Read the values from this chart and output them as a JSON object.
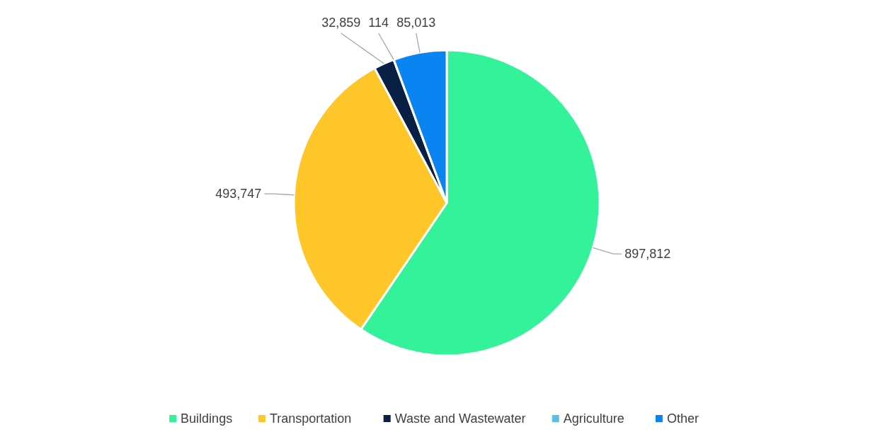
{
  "chart_data": {
    "type": "pie",
    "categories": [
      "Buildings",
      "Transportation",
      "Waste and Wastewater",
      "Agriculture",
      "Other"
    ],
    "values": [
      897812,
      493747,
      32859,
      114,
      85013
    ],
    "colors": [
      "#33f29a",
      "#ffc629",
      "#0a1f44",
      "#5bc0de",
      "#0a84f0"
    ],
    "value_labels": [
      "897,812",
      "493,747",
      "32,859",
      "114",
      "85,013"
    ],
    "legend": "bottom"
  }
}
